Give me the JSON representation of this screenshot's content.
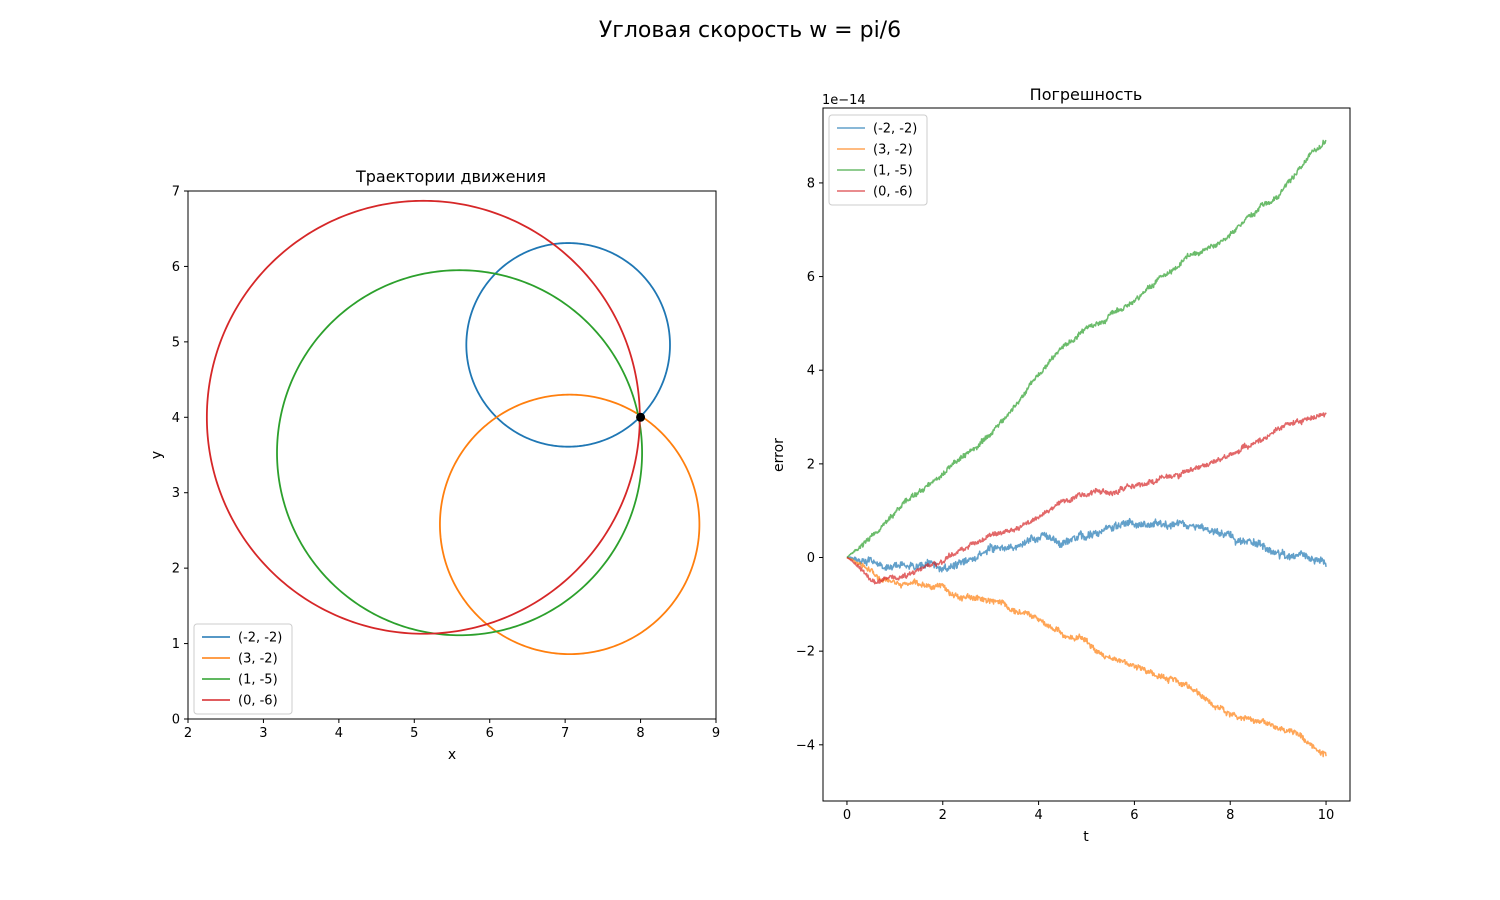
{
  "figure": {
    "suptitle": "Угловая скорость w = pi/6"
  },
  "chart_data": [
    {
      "type": "line",
      "title": "Траектории движения",
      "xlabel": "x",
      "ylabel": "y",
      "xlim": [
        2,
        9
      ],
      "ylim": [
        0,
        7
      ],
      "xticks": [
        2,
        3,
        4,
        5,
        6,
        7,
        8,
        9
      ],
      "yticks": [
        0,
        1,
        2,
        3,
        4,
        5,
        6,
        7
      ],
      "aspect": "equal",
      "grid": false,
      "legend_position": "lower-left",
      "series": [
        {
          "name": "(-2, -2)",
          "color": "#1f77b4",
          "shape": "circle",
          "center": [
            7.04,
            4.96
          ],
          "radius": 1.35
        },
        {
          "name": "(3, -2)",
          "color": "#ff7f0e",
          "shape": "circle",
          "center": [
            7.06,
            2.58
          ],
          "radius": 1.72
        },
        {
          "name": "(1, -5)",
          "color": "#2ca02c",
          "shape": "circle",
          "center": [
            5.6,
            3.53
          ],
          "radius": 2.42
        },
        {
          "name": "(0, -6)",
          "color": "#d62728",
          "shape": "circle",
          "center": [
            5.12,
            4.0
          ],
          "radius": 2.87
        }
      ],
      "point": {
        "x": 8,
        "y": 4,
        "color": "#000000"
      }
    },
    {
      "type": "line",
      "title": "Погрешность",
      "xlabel": "t",
      "ylabel": "error",
      "offset_label": "1e−14",
      "xlim": [
        -0.5,
        10.5
      ],
      "ylim": [
        -5.2,
        9.6
      ],
      "xticks": [
        0,
        2,
        4,
        6,
        8,
        10
      ],
      "yticks": [
        -4,
        -2,
        0,
        2,
        4,
        6,
        8
      ],
      "grid": false,
      "legend_position": "upper-left",
      "series": [
        {
          "name": "(-2, -2)",
          "color": "#1f77b4",
          "t_end": 10,
          "trend": [
            [
              0,
              0
            ],
            [
              2,
              0.2
            ],
            [
              4,
              0.55
            ],
            [
              5.5,
              0.75
            ],
            [
              7,
              0.5
            ],
            [
              8.5,
              0.15
            ],
            [
              10,
              -0.15
            ]
          ],
          "noise": 0.28,
          "seed": 11
        },
        {
          "name": "(3, -2)",
          "color": "#ff7f0e",
          "t_end": 10,
          "trend": [
            [
              0,
              0
            ],
            [
              1,
              -0.45
            ],
            [
              2,
              -0.6
            ],
            [
              3,
              -0.7
            ],
            [
              4,
              -1.05
            ],
            [
              5,
              -1.5
            ],
            [
              6,
              -2.1
            ],
            [
              7,
              -2.5
            ],
            [
              8,
              -3.1
            ],
            [
              9,
              -3.55
            ],
            [
              10,
              -4.2
            ]
          ],
          "noise": 0.22,
          "seed": 23
        },
        {
          "name": "(1, -5)",
          "color": "#2ca02c",
          "t_end": 10,
          "trend": [
            [
              0,
              0
            ],
            [
              0.5,
              0.55
            ],
            [
              1,
              1.1
            ],
            [
              2,
              1.95
            ],
            [
              3,
              2.8
            ],
            [
              4,
              4.0
            ],
            [
              5,
              5.0
            ],
            [
              6,
              5.8
            ],
            [
              7,
              6.4
            ],
            [
              8,
              7.05
            ],
            [
              9,
              7.9
            ],
            [
              10,
              8.9
            ]
          ],
          "noise": 0.2,
          "seed": 37
        },
        {
          "name": "(0, -6)",
          "color": "#d62728",
          "t_end": 10,
          "trend": [
            [
              0,
              0
            ],
            [
              0.6,
              -0.3
            ],
            [
              1.2,
              -0.15
            ],
            [
              2,
              0.05
            ],
            [
              3,
              0.55
            ],
            [
              4,
              0.9
            ],
            [
              5,
              1.3
            ],
            [
              6,
              1.65
            ],
            [
              7,
              2.0
            ],
            [
              8,
              2.35
            ],
            [
              9,
              2.75
            ],
            [
              10,
              3.05
            ]
          ],
          "noise": 0.2,
          "seed": 53
        }
      ]
    }
  ]
}
